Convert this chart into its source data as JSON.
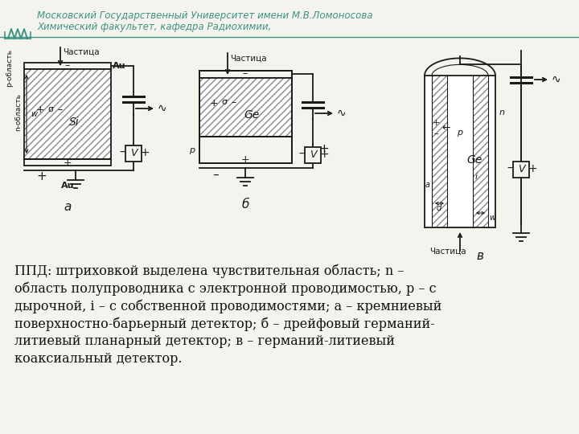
{
  "bg_color": "#f4f3ee",
  "header_color": "#3d9482",
  "text_color": "#111111",
  "dc": "#1a1a1a",
  "header_text1": "Московский Государственный Университет имени М.В.Ломоносова",
  "header_text2": "Химический факультет, кафедра Радиохимии,",
  "caption_lines": [
    "ППД: штриховкой выделена чувствительная область; n –",
    "область полупроводника с электронной проводимостью, p – с",
    "дырочной, i – с собственной проводимостями; а – кремниевый",
    "поверхностно-барьерный детектор; б – дрейфовый германий-",
    "литиевый планарный детектор; в – германий-литиевый",
    "коаксиальный детектор."
  ]
}
